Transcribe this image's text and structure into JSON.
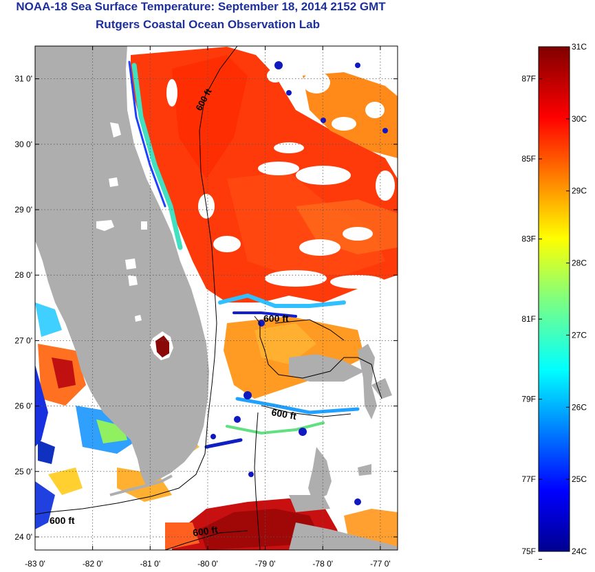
{
  "title": "NOAA-18 Sea Surface Temperature:  September 18, 2014 2152 GMT",
  "subtitle": "Rutgers Coastal Ocean Observation Lab",
  "map": {
    "lat_ticks": [
      "31 0'",
      "30 0'",
      "29 0'",
      "28 0'",
      "27 0'",
      "26 0'",
      "25 0'",
      "24 0'"
    ],
    "lat_values": [
      31,
      30,
      29,
      28,
      27,
      26,
      25,
      24
    ],
    "lon_ticks": [
      "-83 0'",
      "-82 0'",
      "-81 0'",
      "-80 0'",
      "-79 0'",
      "-78 0'",
      "-77 0'"
    ],
    "lon_values": [
      -83,
      -82,
      -81,
      -80,
      -79,
      -78,
      -77
    ],
    "lon_range": [
      -83,
      -76.7
    ],
    "lat_range": [
      23.8,
      31.5
    ],
    "contour_labels": [
      "600 ft",
      "600 ft",
      "600 ft",
      "600 ft"
    ],
    "colors": {
      "land": "#aeaeae",
      "cloud": "#ffffff"
    }
  },
  "colorbar": {
    "celsius_labels": [
      "31C",
      "30C",
      "29C",
      "28C",
      "27C",
      "26C",
      "25C",
      "24C"
    ],
    "celsius_values": [
      31,
      30,
      29,
      28,
      27,
      26,
      25,
      24
    ],
    "fahrenheit_labels": [
      "87F",
      "85F",
      "83F",
      "81F",
      "79F",
      "77F",
      "75F"
    ],
    "fahrenheit_values": [
      87,
      85,
      83,
      81,
      79,
      77,
      75
    ],
    "range_c": [
      24,
      31
    ]
  }
}
